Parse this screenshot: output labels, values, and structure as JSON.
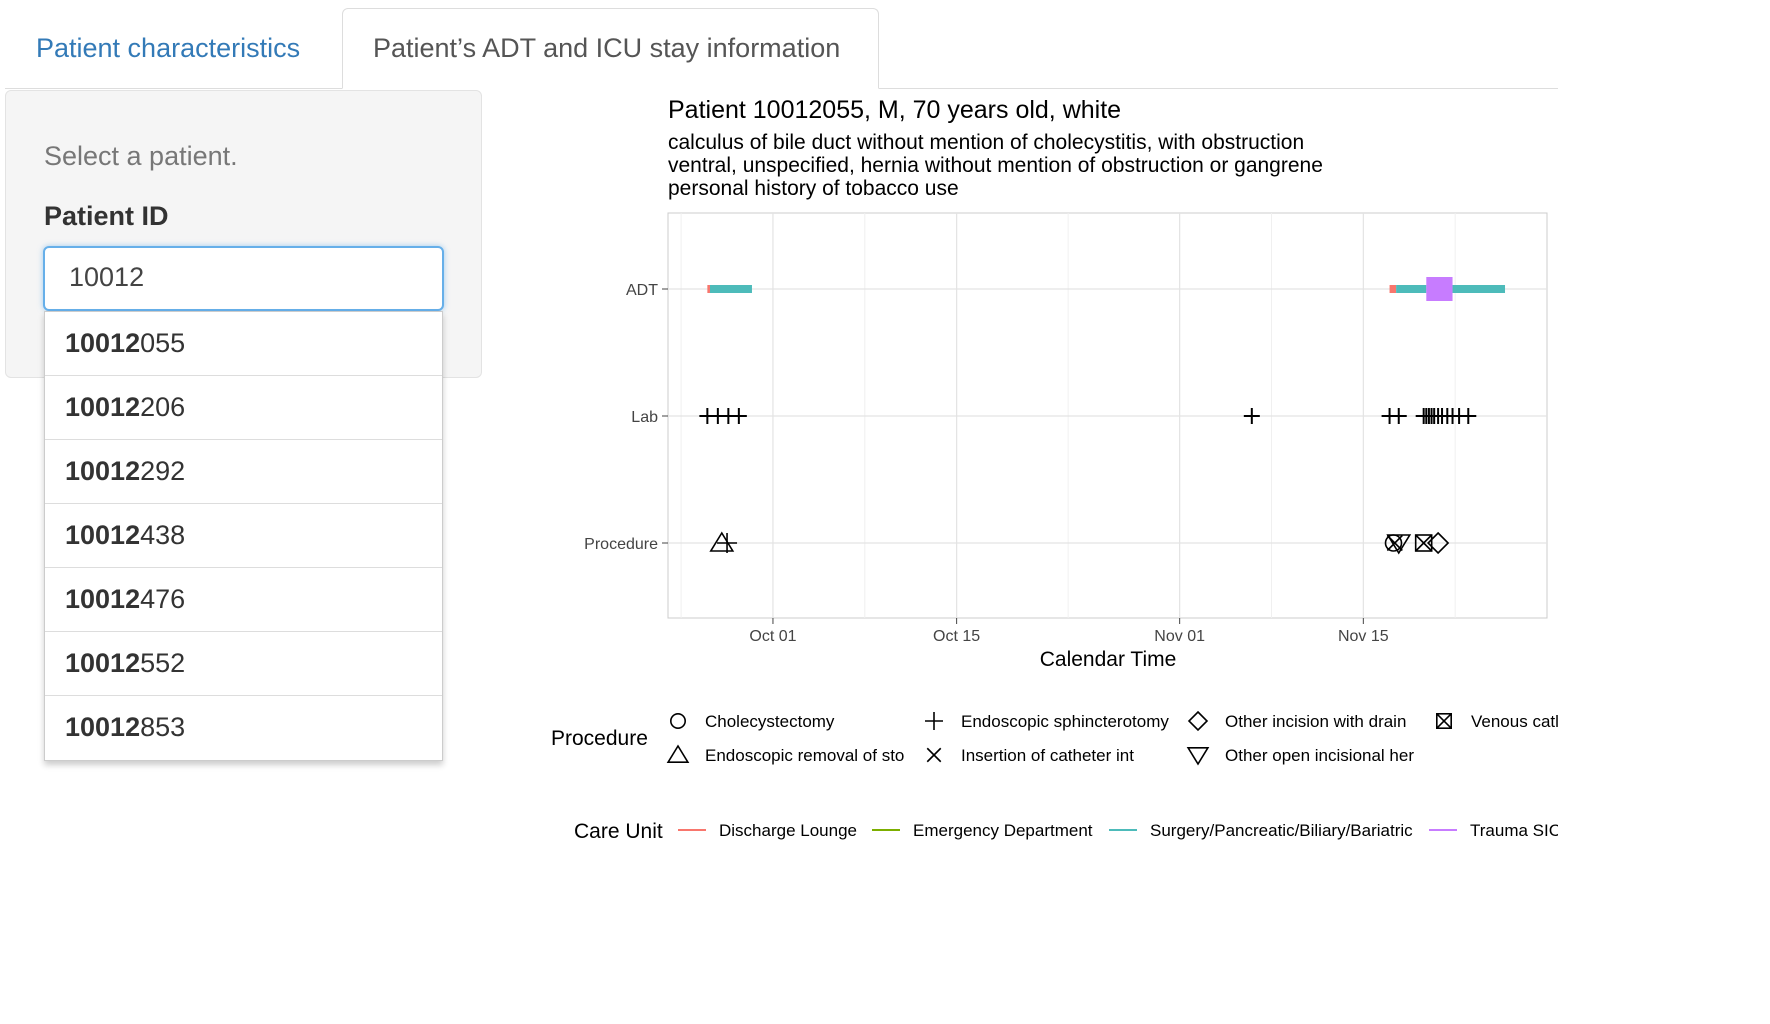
{
  "tabs": [
    {
      "label": "Patient characteristics"
    },
    {
      "label": "Patient’s ADT and ICU stay information"
    }
  ],
  "sidebar": {
    "prompt": "Select a patient.",
    "field_label": "Patient ID",
    "input_value": "10012",
    "options": [
      {
        "match": "10012",
        "rest": "055"
      },
      {
        "match": "10012",
        "rest": "206"
      },
      {
        "match": "10012",
        "rest": "292"
      },
      {
        "match": "10012",
        "rest": "438"
      },
      {
        "match": "10012",
        "rest": "476"
      },
      {
        "match": "10012",
        "rest": "552"
      },
      {
        "match": "10012",
        "rest": "853"
      }
    ]
  },
  "chart": {
    "title": "Patient 10012055, M, 70 years old, white",
    "subtitles": [
      "calculus of bile duct without mention of cholecystitis, with obstruction",
      "ventral, unspecified, hernia without mention of obstruction or gangrene",
      "personal history of tobacco use"
    ],
    "xlabel": "Calendar Time"
  },
  "chart_data": {
    "type": "timeline",
    "x_axis": {
      "label": "Calendar Time",
      "ticks": [
        "Oct 01",
        "Oct 15",
        "Nov 01",
        "Nov 15"
      ],
      "range": [
        "2130-09-23",
        "2130-11-29"
      ]
    },
    "y_categories": [
      "ADT",
      "Lab",
      "Procedure"
    ],
    "adt_segments": [
      {
        "unit": "Discharge Lounge",
        "start": "2130-09-26.0",
        "end": "2130-09-26.2"
      },
      {
        "unit": "Surgery/Pancreatic/Biliary/Bariatric",
        "start": "2130-09-26.2",
        "end": "2130-09-29.4"
      },
      {
        "unit": "Discharge Lounge",
        "start": "2130-11-17.0",
        "end": "2130-11-17.5"
      },
      {
        "unit": "Surgery/Pancreatic/Biliary/Bariatric",
        "start": "2130-11-17.5",
        "end": "2130-11-19.8"
      },
      {
        "unit": "Trauma SICU",
        "start": "2130-11-19.8",
        "end": "2130-11-21.8"
      },
      {
        "unit": "Surgery/Pancreatic/Biliary/Bariatric",
        "start": "2130-11-21.8",
        "end": "2130-11-25.8"
      }
    ],
    "lab_times": [
      "2130-09-26.0",
      "2130-09-26.8",
      "2130-09-27.6",
      "2130-09-28.4",
      "2130-11-06.5",
      "2130-11-17.0",
      "2130-11-17.7",
      "2130-11-19.6",
      "2130-11-19.8",
      "2130-11-20.0",
      "2130-11-20.2",
      "2130-11-20.4",
      "2130-11-20.7",
      "2130-11-21.0",
      "2130-11-21.4",
      "2130-11-21.8",
      "2130-11-22.3",
      "2130-11-23.0"
    ],
    "procedures": [
      {
        "name": "Endoscopic removal of sto",
        "time": "2130-09-27.1",
        "shape": "triangle-up"
      },
      {
        "name": "Endoscopic sphincterotomy",
        "time": "2130-09-27.5",
        "shape": "plus"
      },
      {
        "name": "Cholecystectomy",
        "time": "2130-11-17.3",
        "shape": "circle"
      },
      {
        "name": "Insertion of catheter int",
        "time": "2130-11-17.4",
        "shape": "x"
      },
      {
        "name": "Other open incisional her",
        "time": "2130-11-17.7",
        "shape": "triangle-down"
      },
      {
        "name": "Venous cat",
        "time": "2130-11-19.6",
        "shape": "box-x"
      },
      {
        "name": "Other incision with drain",
        "time": "2130-11-20.7",
        "shape": "diamond"
      }
    ],
    "legend_procedure": {
      "title": "Procedure",
      "items": [
        {
          "label": "Cholecystectomy",
          "shape": "circle"
        },
        {
          "label": "Endoscopic removal of sto",
          "shape": "triangle-up"
        },
        {
          "label": "Endoscopic sphincterotomy",
          "shape": "plus"
        },
        {
          "label": "Insertion of catheter int",
          "shape": "x"
        },
        {
          "label": "Other incision with drain",
          "shape": "diamond"
        },
        {
          "label": "Other open incisional her",
          "shape": "triangle-down"
        },
        {
          "label": "Venous catl",
          "shape": "box-x"
        }
      ]
    },
    "legend_care_unit": {
      "title": "Care Unit",
      "items": [
        {
          "label": "Discharge Lounge",
          "color": "#F8766D"
        },
        {
          "label": "Emergency Department",
          "color": "#7CAE00"
        },
        {
          "label": "Surgery/Pancreatic/Biliary/Bariatric",
          "color": "#4DBBBA"
        },
        {
          "label": "Trauma SIC",
          "color": "#C77CFF"
        }
      ]
    }
  }
}
